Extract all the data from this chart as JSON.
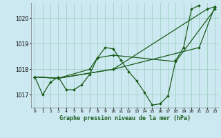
{
  "title": "Graphe pression niveau de la mer (hPa)",
  "background_color": "#cce8f0",
  "grid_color": "#99ccbb",
  "line_color": "#1a5c1a",
  "marker_color": "#1a5c1a",
  "x_labels": [
    "0",
    "1",
    "2",
    "3",
    "4",
    "5",
    "6",
    "7",
    "8",
    "9",
    "10",
    "11",
    "12",
    "13",
    "14",
    "15",
    "16",
    "17",
    "18",
    "19",
    "20",
    "21",
    "22",
    "23"
  ],
  "ylim": [
    1016.5,
    1020.6
  ],
  "yticks": [
    1017,
    1018,
    1019,
    1020
  ],
  "series_main": [
    1017.7,
    1017.0,
    1017.5,
    1017.7,
    1017.2,
    1017.2,
    1017.4,
    1017.8,
    1018.45,
    1018.85,
    1018.8,
    1018.35,
    1017.9,
    1017.55,
    1017.1,
    1016.6,
    1016.65,
    1016.95,
    1018.35,
    1018.85,
    1020.35,
    1020.5,
    null,
    null
  ],
  "series_diag1": [
    1017.7,
    null,
    null,
    1017.65,
    null,
    null,
    null,
    null,
    null,
    null,
    1018.0,
    null,
    null,
    null,
    null,
    null,
    null,
    null,
    null,
    null,
    null,
    null,
    1020.35,
    1020.45
  ],
  "series_diag2": [
    1017.7,
    null,
    null,
    1017.65,
    null,
    null,
    null,
    null,
    null,
    null,
    1018.0,
    null,
    null,
    null,
    null,
    null,
    null,
    null,
    null,
    null,
    null,
    1018.85,
    null,
    1020.45
  ],
  "series_diag3": [
    1017.7,
    null,
    null,
    1017.65,
    null,
    null,
    null,
    1018.0,
    1018.45,
    null,
    1018.55,
    null,
    null,
    null,
    null,
    null,
    null,
    null,
    1018.3,
    null,
    null,
    null,
    null,
    1020.35
  ]
}
